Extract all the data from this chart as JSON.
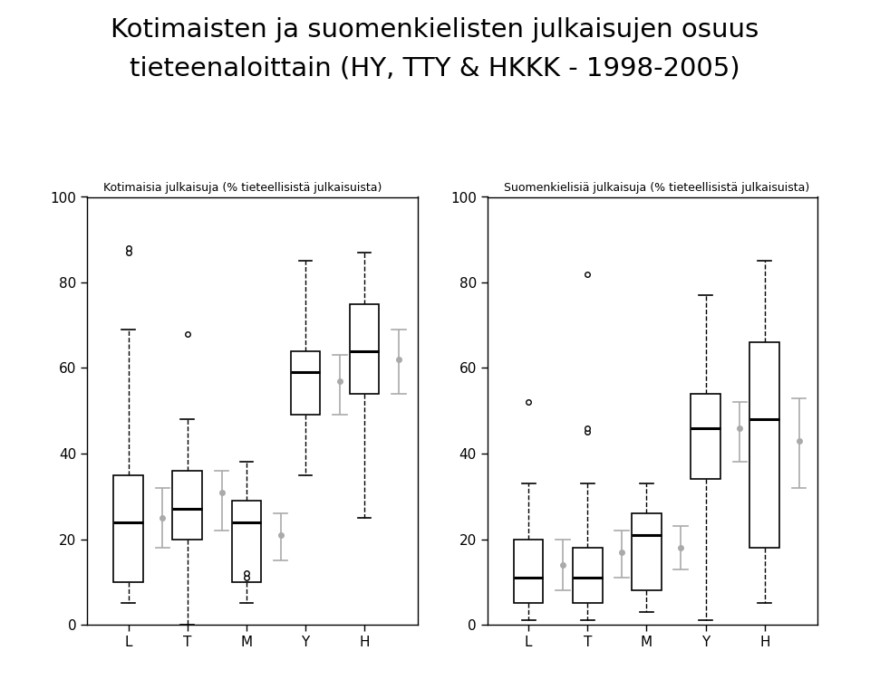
{
  "title_line1": "Kotimaisten ja suomenkielisten julkaisujen osuus",
  "title_line2": "tieteenaloittain (HY, TTY & HKKK - 1998-2005)",
  "left_subtitle": "Kotimaisia julkaisuja (% tieteellisistä julkaisuista)",
  "right_subtitle": "Suomenkielisiä julkaisuja (% tieteellisistä julkaisuista)",
  "categories": [
    "L",
    "T",
    "M",
    "Y",
    "H"
  ],
  "left_boxes": [
    {
      "whislo": 5,
      "q1": 10,
      "med": 24,
      "q3": 35,
      "whishi": 69,
      "fliers": [
        87,
        88
      ]
    },
    {
      "whislo": 0,
      "q1": 20,
      "med": 27,
      "q3": 36,
      "whishi": 48,
      "fliers": [
        68
      ]
    },
    {
      "whislo": 5,
      "q1": 10,
      "med": 24,
      "q3": 29,
      "whishi": 38,
      "fliers": [
        11,
        12
      ]
    },
    {
      "whislo": 35,
      "q1": 49,
      "med": 59,
      "q3": 64,
      "whishi": 85,
      "fliers": []
    },
    {
      "whislo": 25,
      "q1": 54,
      "med": 64,
      "q3": 75,
      "whishi": 87,
      "fliers": []
    }
  ],
  "right_boxes": [
    {
      "whislo": 1,
      "q1": 5,
      "med": 11,
      "q3": 20,
      "whishi": 33,
      "fliers": [
        52
      ]
    },
    {
      "whislo": 1,
      "q1": 5,
      "med": 11,
      "q3": 18,
      "whishi": 33,
      "fliers": [
        45,
        46,
        82
      ]
    },
    {
      "whislo": 3,
      "q1": 8,
      "med": 21,
      "q3": 26,
      "whishi": 33,
      "fliers": []
    },
    {
      "whislo": 1,
      "q1": 34,
      "med": 46,
      "q3": 54,
      "whishi": 77,
      "fliers": []
    },
    {
      "whislo": 5,
      "q1": 18,
      "med": 48,
      "q3": 66,
      "whishi": 85,
      "fliers": []
    }
  ],
  "left_means": [
    25,
    31,
    21,
    57,
    62
  ],
  "left_mean_lo": [
    18,
    22,
    15,
    49,
    54
  ],
  "left_mean_hi": [
    32,
    36,
    26,
    63,
    69
  ],
  "right_means": [
    14,
    17,
    18,
    46,
    43
  ],
  "right_mean_lo": [
    8,
    11,
    13,
    38,
    32
  ],
  "right_mean_hi": [
    20,
    22,
    23,
    52,
    53
  ],
  "ylim": [
    0,
    100
  ],
  "yticks": [
    0,
    20,
    40,
    60,
    80,
    100
  ],
  "box_color": "white",
  "median_color": "black",
  "whisker_color": "black",
  "flier_edge_color": "black",
  "flier_face_color": "white",
  "mean_color": "#aaaaaa",
  "background_color": "white",
  "title_fontsize": 21,
  "subtitle_fontsize": 9,
  "tick_fontsize": 11
}
